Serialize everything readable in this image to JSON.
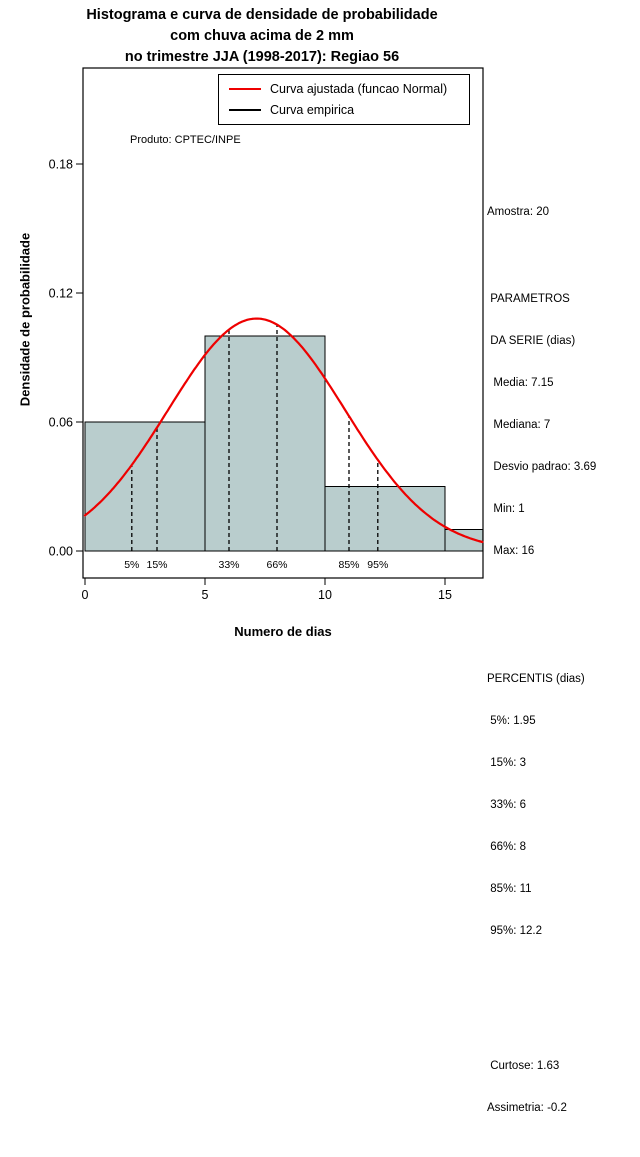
{
  "title": {
    "line1": "Histograma e curva de densidade de probabilidade",
    "line2": "com chuva acima de 2 mm",
    "line3": "no trimestre JJA (1998-2017): Regiao 56"
  },
  "legend": {
    "items": [
      {
        "label": "Curva ajustada (funcao Normal)",
        "color": "#ee0000"
      },
      {
        "label": "Curva empirica",
        "color": "#000000"
      }
    ]
  },
  "product_label": "Produto: CPTEC/INPE",
  "axes": {
    "x_label": "Numero de dias",
    "y_label": "Densidade de probabilidade"
  },
  "stats_panel": {
    "sample": "Amostra: 20",
    "series_block": [
      " PARAMETROS",
      " DA SERIE (dias)",
      "  Media: 7.15",
      "  Mediana: 7",
      "  Desvio padrao: 3.69",
      "  Min: 1",
      "  Max: 16"
    ],
    "percentiles_block": [
      "PERCENTIS (dias)",
      " 5%: 1.95",
      " 15%: 3",
      " 33%: 6",
      " 66%: 8",
      " 85%: 11",
      " 95%: 12.2"
    ],
    "moments_block": [
      " Curtose: 1.63",
      "Assimetria: -0.2"
    ]
  },
  "chart_data": {
    "type": "histogram+density",
    "title": "Histograma e curva de densidade de probabilidade com chuva acima de 2 mm no trimestre JJA (1998-2017): Regiao 56",
    "xlabel": "Numero de dias",
    "ylabel": "Densidade de probabilidade",
    "xlim": [
      0,
      16.58
    ],
    "ylim": [
      0,
      0.2247
    ],
    "x_ticks": [
      {
        "v": 0,
        "label": "0"
      },
      {
        "v": 5,
        "label": "5"
      },
      {
        "v": 10,
        "label": "10"
      },
      {
        "v": 15,
        "label": "15"
      }
    ],
    "y_ticks": [
      {
        "v": 0,
        "label": "0.00"
      },
      {
        "v": 0.06,
        "label": "0.06"
      },
      {
        "v": 0.12,
        "label": "0.12"
      },
      {
        "v": 0.18,
        "label": "0.18"
      }
    ],
    "histogram": {
      "breaks": [
        0,
        5,
        10,
        15,
        20
      ],
      "densities": [
        0.06,
        0.1,
        0.03,
        0.01
      ],
      "counts": [
        6,
        10,
        3,
        1
      ],
      "fill": "#b9cdcd",
      "stroke": "#000000"
    },
    "normal_fit": {
      "mean": 7.15,
      "sd": 3.69,
      "color": "#ee0000"
    },
    "sample_size": 20,
    "percentiles": [
      {
        "label": "5%",
        "value": 1.95
      },
      {
        "label": "15%",
        "value": 3
      },
      {
        "label": "33%",
        "value": 6
      },
      {
        "label": "66%",
        "value": 8
      },
      {
        "label": "85%",
        "value": 11
      },
      {
        "label": "95%",
        "value": 12.2
      }
    ],
    "stats": {
      "media": 7.15,
      "mediana": 7,
      "desvio_padrao": 3.69,
      "min": 1,
      "max": 16,
      "curtose": 1.63,
      "assimetria": -0.2
    }
  }
}
